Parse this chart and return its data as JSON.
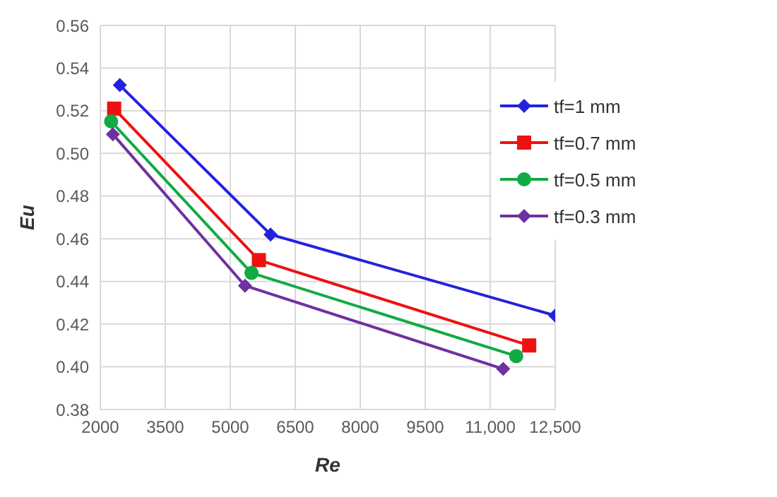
{
  "chart_data": {
    "type": "line",
    "xlabel": "Re",
    "ylabel": "Eu",
    "xlim": [
      2000,
      12500
    ],
    "ylim": [
      0.38,
      0.56
    ],
    "xticks": [
      2000,
      3500,
      5000,
      6500,
      8000,
      9500,
      {
        "value": 11000,
        "label": "11,000"
      },
      {
        "value": 12500,
        "label": "12,500"
      }
    ],
    "yticks": [
      {
        "value": 0.38,
        "label": "0.38"
      },
      {
        "value": 0.4,
        "label": "0.40"
      },
      {
        "value": 0.42,
        "label": "0.42"
      },
      {
        "value": 0.44,
        "label": "0.44"
      },
      {
        "value": 0.46,
        "label": "0.46"
      },
      {
        "value": 0.48,
        "label": "0.48"
      },
      {
        "value": 0.5,
        "label": "0.50"
      },
      {
        "value": 0.52,
        "label": "0.52"
      },
      {
        "value": 0.54,
        "label": "0.54"
      },
      {
        "value": 0.56,
        "label": "0.56"
      }
    ],
    "grid": true,
    "legend": "top right",
    "series": [
      {
        "name": "tf=1 mm",
        "color": "#2222dd",
        "marker": "diamond",
        "x": [
          2450,
          5930,
          12500
        ],
        "values": [
          0.532,
          0.462,
          0.424
        ]
      },
      {
        "name": "tf=0.7 mm",
        "color": "#ee1111",
        "marker": "square",
        "x": [
          2320,
          5660,
          11900
        ],
        "values": [
          0.521,
          0.45,
          0.41
        ]
      },
      {
        "name": "tf=0.5 mm",
        "color": "#11aa44",
        "marker": "circle",
        "x": [
          2250,
          5490,
          11600
        ],
        "values": [
          0.515,
          0.444,
          0.405
        ]
      },
      {
        "name": "tf=0.3 mm",
        "color": "#7030a0",
        "marker": "diamond",
        "x": [
          2290,
          5340,
          11300
        ],
        "values": [
          0.509,
          0.438,
          0.399
        ]
      }
    ]
  }
}
